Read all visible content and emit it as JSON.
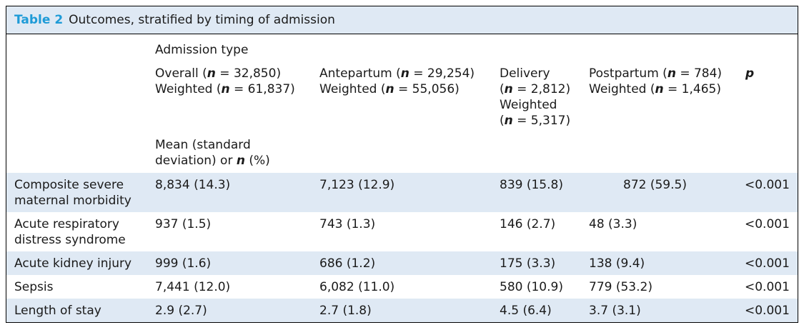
{
  "caption": {
    "label": "Table 2",
    "title": "Outcomes, stratified by timing of admission"
  },
  "header": {
    "group_label": "Admission type",
    "columns": [
      {
        "line1_pre": "Overall (",
        "line1_n": "n",
        "line1_post": " = 32,850)",
        "line2_pre": "Weighted (",
        "line2_n": "n",
        "line2_post": " = 61,837)"
      },
      {
        "line1_pre": "Antepartum (",
        "line1_n": "n",
        "line1_post": " = 29,254)",
        "line2_pre": "Weighted (",
        "line2_n": "n",
        "line2_post": " = 55,056)"
      },
      {
        "line1": "Delivery",
        "line2_pre": "(",
        "line2_n": "n",
        "line2_post": " = 2,812)",
        "line3": "Weighted",
        "line4_pre": "(",
        "line4_n": "n",
        "line4_post": " = 5,317)"
      },
      {
        "line1_pre": "Postpartum (",
        "line1_n": "n",
        "line1_post": " = 784)",
        "line2_pre": "Weighted (",
        "line2_n": "n",
        "line2_post": " = 1,465)"
      }
    ],
    "p_label": "p",
    "stat_line1": "Mean (standard",
    "stat_line2_pre": "deviation) or ",
    "stat_line2_n": "n",
    "stat_line2_post": " (%)"
  },
  "rows": [
    {
      "label1": "Composite severe",
      "label2": "maternal morbidity",
      "overall": "8,834 (14.3)",
      "antepartum": "7,123 (12.9)",
      "delivery": "839 (15.8)",
      "postpartum": "872 (59.5)",
      "p": "<0.001"
    },
    {
      "label1": "Acute respiratory",
      "label2": "distress syndrome",
      "overall": "937 (1.5)",
      "antepartum": "743 (1.3)",
      "delivery": "146 (2.7)",
      "postpartum": "48 (3.3)",
      "p": "<0.001"
    },
    {
      "label1": "Acute kidney injury",
      "overall": "999 (1.6)",
      "antepartum": "686 (1.2)",
      "delivery": "175 (3.3)",
      "postpartum": "138 (9.4)",
      "p": "<0.001"
    },
    {
      "label1": "Sepsis",
      "overall": "7,441 (12.0)",
      "antepartum": "6,082 (11.0)",
      "delivery": "580 (10.9)",
      "postpartum": "779 (53.2)",
      "p": "<0.001"
    },
    {
      "label1": "Length of stay",
      "overall": "2.9 (2.7)",
      "antepartum": "2.7 (1.8)",
      "delivery": "4.5 (6.4)",
      "postpartum": "3.7 (3.1)",
      "p": "<0.001"
    }
  ]
}
